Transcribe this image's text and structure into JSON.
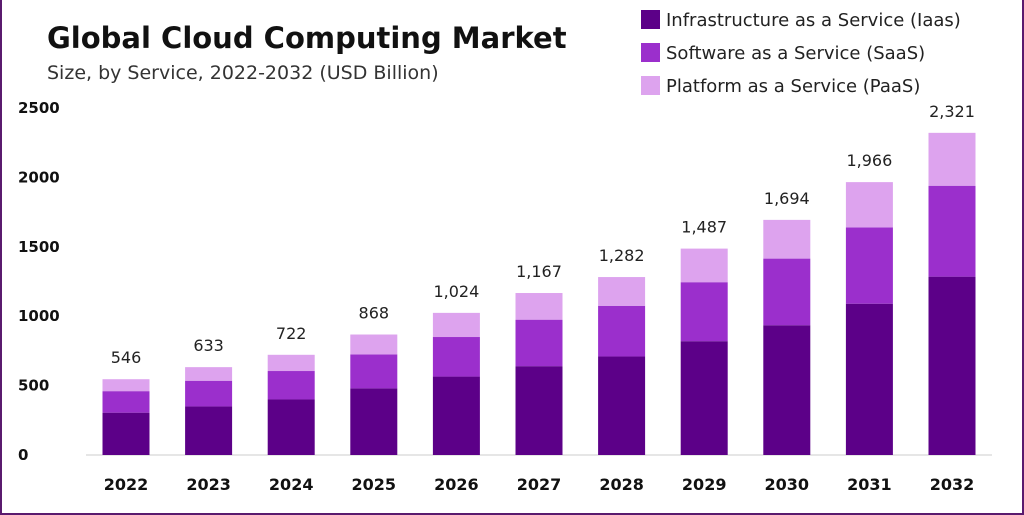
{
  "colors": {
    "iaas": "#5c0088",
    "saas": "#9b2fcc",
    "paas": "#dda3ee",
    "frame": "#5a1a6e"
  },
  "chart_data": {
    "type": "bar",
    "stacked": true,
    "title": "Global Cloud Computing Market",
    "subtitle": "Size, by Service, 2022-2032 (USD Billion)",
    "categories": [
      "2022",
      "2023",
      "2024",
      "2025",
      "2026",
      "2027",
      "2028",
      "2029",
      "2030",
      "2031",
      "2032"
    ],
    "series": [
      {
        "name": "Infrastructure as a Service (Iaas)",
        "key": "iaas",
        "values": [
          305,
          350,
          400,
          480,
          565,
          640,
          710,
          820,
          935,
          1090,
          1285
        ]
      },
      {
        "name": "Software as a Service (SaaS)",
        "key": "saas",
        "values": [
          155,
          185,
          205,
          245,
          285,
          335,
          365,
          425,
          480,
          550,
          655
        ]
      },
      {
        "name": "Platform as a Service (PaaS)",
        "key": "paas",
        "values": [
          86,
          98,
          117,
          143,
          174,
          192,
          207,
          242,
          279,
          326,
          381
        ]
      }
    ],
    "totals": [
      "546",
      "633",
      "722",
      "868",
      "1,024",
      "1,167",
      "1,282",
      "1,487",
      "1,694",
      "1,966",
      "2,321"
    ],
    "yticks": [
      "0",
      "500",
      "1000",
      "1500",
      "2000",
      "2500"
    ],
    "ylim": [
      0,
      2500
    ],
    "legend_position": "top-right",
    "grid": false
  }
}
